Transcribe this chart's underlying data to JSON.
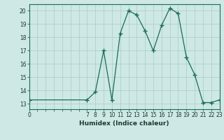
{
  "x": [
    0,
    7,
    8,
    9,
    10,
    11,
    12,
    13,
    14,
    15,
    16,
    17,
    18,
    19,
    20,
    21,
    22,
    23
  ],
  "y": [
    13.3,
    13.3,
    13.9,
    17.0,
    13.3,
    18.3,
    20.0,
    19.7,
    18.5,
    17.0,
    18.9,
    20.2,
    19.8,
    16.5,
    15.2,
    13.1,
    13.1,
    13.3
  ],
  "line_color": "#1a6b5a",
  "marker": "+",
  "marker_size": 4,
  "xlabel": "Humidex (Indice chaleur)",
  "xlim": [
    0,
    23
  ],
  "ylim": [
    12.6,
    20.5
  ],
  "yticks": [
    13,
    14,
    15,
    16,
    17,
    18,
    19,
    20
  ],
  "bg_color": "#cde8e5",
  "grid_color": "#b0d0cc",
  "font_color": "#1a3a30",
  "tick_fontsize": 5.5,
  "label_fontsize": 6.5
}
